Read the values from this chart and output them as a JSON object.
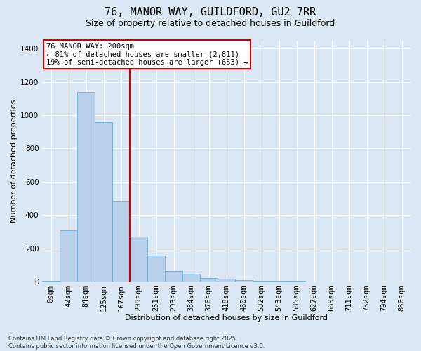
{
  "title_line1": "76, MANOR WAY, GUILDFORD, GU2 7RR",
  "title_line2": "Size of property relative to detached houses in Guildford",
  "xlabel": "Distribution of detached houses by size in Guildford",
  "ylabel": "Number of detached properties",
  "footnote_line1": "Contains HM Land Registry data © Crown copyright and database right 2025.",
  "footnote_line2": "Contains public sector information licensed under the Open Government Licence v3.0.",
  "bin_labels": [
    "0sqm",
    "42sqm",
    "84sqm",
    "125sqm",
    "167sqm",
    "209sqm",
    "251sqm",
    "293sqm",
    "334sqm",
    "376sqm",
    "418sqm",
    "460sqm",
    "502sqm",
    "543sqm",
    "585sqm",
    "627sqm",
    "669sqm",
    "711sqm",
    "752sqm",
    "794sqm",
    "836sqm"
  ],
  "bar_values": [
    5,
    310,
    1140,
    960,
    480,
    270,
    155,
    65,
    45,
    20,
    15,
    10,
    5,
    2,
    2,
    1,
    0,
    0,
    0,
    0,
    0
  ],
  "bar_color": "#b8d0ea",
  "bar_edge_color": "#6aaad4",
  "vline_x": 4.5,
  "vline_color": "#cc0000",
  "ylim": [
    0,
    1450
  ],
  "yticks": [
    0,
    200,
    400,
    600,
    800,
    1000,
    1200,
    1400
  ],
  "annotation_text": "76 MANOR WAY: 200sqm\n← 81% of detached houses are smaller (2,811)\n19% of semi-detached houses are larger (653) →",
  "bg_color": "#dce8f5",
  "plot_bg_color": "#dce8f5",
  "title1_fontsize": 11,
  "title2_fontsize": 9,
  "xlabel_fontsize": 8,
  "ylabel_fontsize": 8,
  "tick_fontsize": 7.5,
  "ann_fontsize": 7.5,
  "footnote_fontsize": 6
}
